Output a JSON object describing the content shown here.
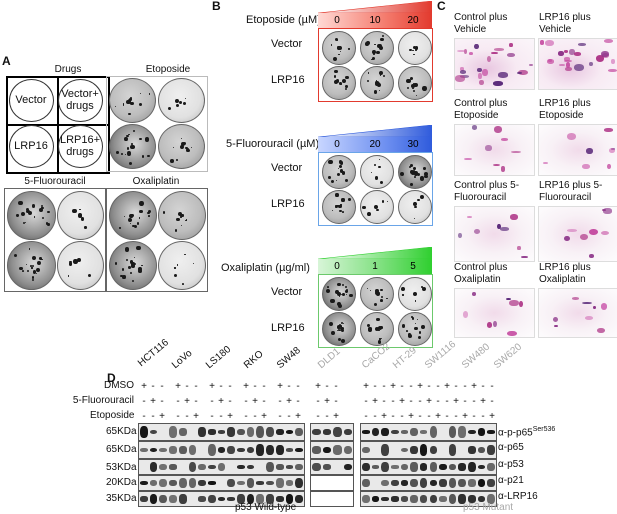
{
  "panels": {
    "a": "A",
    "b": "B",
    "c": "C",
    "d": "D"
  },
  "panel_a": {
    "top_left_header": "Drugs",
    "top_right_header": "Etoposide",
    "schematic": [
      "Vector",
      "Vector+\ndrugs",
      "LRP16",
      "LRP16+\ndrugs"
    ],
    "bottom_left_header": "5-Fluorouracil",
    "bottom_right_header": "Oxaliplatin"
  },
  "panel_b": {
    "etoposide": {
      "label": "Etoposide (µM)",
      "doses": [
        "0",
        "10",
        "20"
      ],
      "color": "#e23a2e"
    },
    "fluorouracil": {
      "label": "5-Fluorouracil (µM)",
      "doses": [
        "0",
        "20",
        "30"
      ],
      "color": "#2f5bdc"
    },
    "oxaliplatin": {
      "label": "Oxaliplatin (µg/ml)",
      "doses": [
        "0",
        "1",
        "5"
      ],
      "color": "#2fcf2f"
    },
    "rows": [
      "Vector",
      "LRP16"
    ]
  },
  "panel_c": {
    "captions": [
      "Control plus\nVehicle",
      "LRP16 plus\nVehicle",
      "Control plus\nEtoposide",
      "LRP16 plus\nEtoposide",
      "Control plus 5-\nFluorouracil",
      "LRP16 plus 5-\nFluorouracil",
      "Control plus\nOxaliplatin",
      "LRP16 plus\nOxaliplatin"
    ]
  },
  "panel_d": {
    "cell_lines_wt": [
      "HCT116",
      "LoVo",
      "LS180",
      "RKO",
      "SW48"
    ],
    "cell_lines_mut": [
      "DLD1",
      "CaCO2",
      "HT-29",
      "SW1116",
      "SW480",
      "SW620"
    ],
    "treatments": [
      "DMSO",
      "5-Fluorouracil",
      "Etoposide"
    ],
    "kda": [
      "65KDa",
      "65KDa",
      "53KDa",
      "20KDa",
      "35KDa"
    ],
    "antibodies": [
      "α-p-p65",
      "α-p65",
      "α-p53",
      "α-p21",
      "α-LRP16"
    ],
    "phospho_site": "Ser536",
    "footer_wt": "p53 Wild-type",
    "footer_mut": "p53 Mutant",
    "plus": "+",
    "minus": "-",
    "mut_color": "#a8a8a8"
  }
}
